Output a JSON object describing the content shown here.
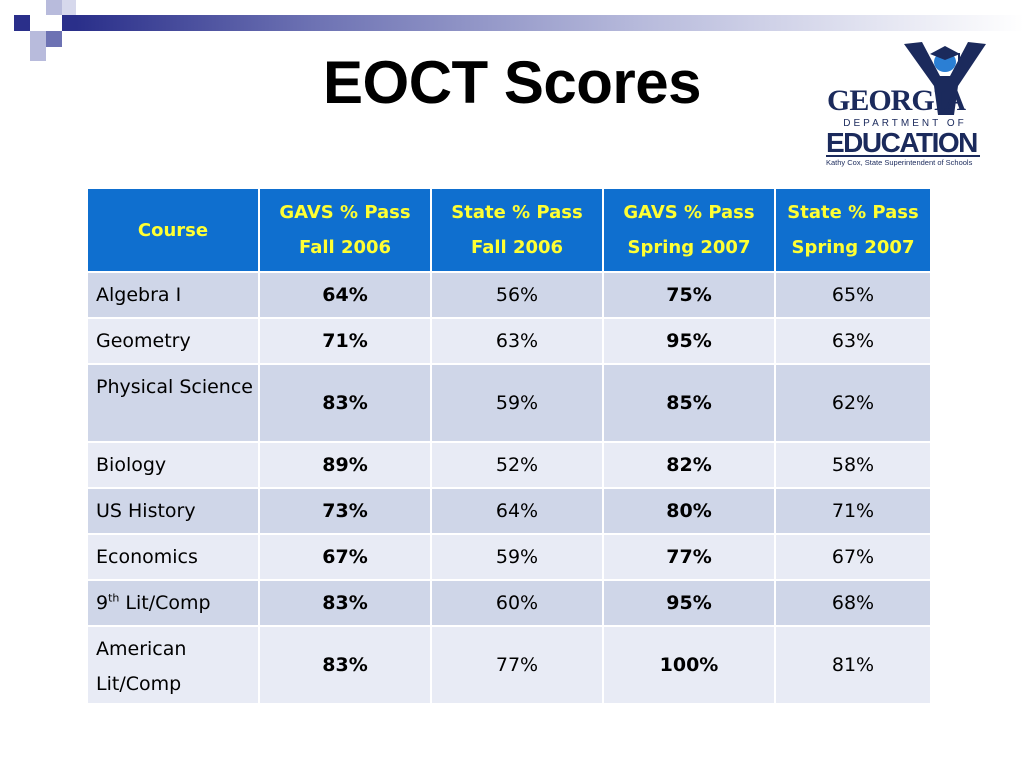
{
  "slide": {
    "title": "EOCT Scores"
  },
  "logo": {
    "name": "GEORGIA",
    "dept": "DEPARTMENT OF",
    "edu": "EDUCATION",
    "superintendent": "Kathy Cox, State Superintendent of Schools"
  },
  "table": {
    "headers": [
      "Course",
      "GAVS % Pass Fall 2006",
      "State % Pass Fall 2006",
      "GAVS % Pass Spring 2007",
      "State % Pass Spring 2007"
    ],
    "rows": [
      {
        "course": "Algebra I",
        "gavs_fall": "64%",
        "state_fall": "56%",
        "gavs_spring": "75%",
        "state_spring": "65%"
      },
      {
        "course": "Geometry",
        "gavs_fall": "71%",
        "state_fall": "63%",
        "gavs_spring": "95%",
        "state_spring": "63%"
      },
      {
        "course": "Physical Science",
        "gavs_fall": "83%",
        "state_fall": "59%",
        "gavs_spring": "85%",
        "state_spring": "62%"
      },
      {
        "course": "Biology",
        "gavs_fall": "89%",
        "state_fall": "52%",
        "gavs_spring": "82%",
        "state_spring": "58%"
      },
      {
        "course": "US History",
        "gavs_fall": "73%",
        "state_fall": "64%",
        "gavs_spring": "80%",
        "state_spring": "71%"
      },
      {
        "course": "Economics",
        "gavs_fall": "67%",
        "state_fall": "59%",
        "gavs_spring": "77%",
        "state_spring": "67%"
      },
      {
        "course_pre": "9",
        "course_sup": "th",
        "course_post": " Lit/Comp",
        "gavs_fall": "83%",
        "state_fall": "60%",
        "gavs_spring": "95%",
        "state_spring": "68%"
      },
      {
        "course": "American Lit/Comp",
        "gavs_fall": "83%",
        "state_fall": "77%",
        "gavs_spring": "100%",
        "state_spring": "81%"
      }
    ]
  },
  "colors": {
    "header_bg": "#0f6fcf",
    "header_text": "#ffff33",
    "row_odd": "#cfd6e8",
    "row_even": "#e8ebf5",
    "accent": "#2a2f8a"
  }
}
